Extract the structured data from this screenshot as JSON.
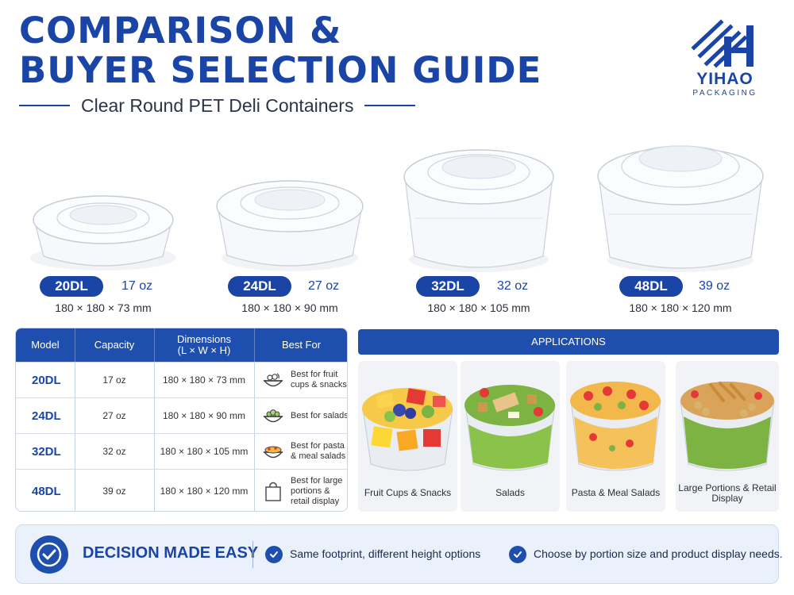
{
  "header": {
    "title_line1": "COMPARISON &",
    "title_line2": "BUYER SELECTION GUIDE",
    "subtitle": "Clear Round PET Deli Containers"
  },
  "brand": {
    "name": "YIHAO",
    "tagline": "PACKAGING"
  },
  "containers": [
    {
      "model": "20DL",
      "capacity": "17 oz",
      "dimensions": "180 × 180 × 73 mm"
    },
    {
      "model": "24DL",
      "capacity": "27 oz",
      "dimensions": "180 × 180 × 90 mm"
    },
    {
      "model": "32DL",
      "capacity": "32 oz",
      "dimensions": "180 × 180 × 105 mm"
    },
    {
      "model": "48DL",
      "capacity": "39 oz",
      "dimensions": "180 × 180 × 120 mm"
    }
  ],
  "table": {
    "headers": {
      "model": "Model",
      "capacity": "Capacity",
      "dimensions_line1": "Dimensions",
      "dimensions_line2": "(L × W × H)",
      "best_for": "Best For"
    },
    "rows": [
      {
        "model": "20DL",
        "capacity": "17 oz",
        "dimensions": "180 × 180 × 73 mm",
        "best_for": "Best for fruit cups & snacks",
        "icon": "fruit-bowl-icon"
      },
      {
        "model": "24DL",
        "capacity": "27 oz",
        "dimensions": "180 × 180 × 90 mm",
        "best_for": "Best for salads",
        "icon": "salad-bowl-icon"
      },
      {
        "model": "32DL",
        "capacity": "32 oz",
        "dimensions": "180 × 180 × 105 mm",
        "best_for": "Best for pasta & meal salads",
        "icon": "pasta-bowl-icon"
      },
      {
        "model": "48DL",
        "capacity": "39 oz",
        "dimensions": "180 × 180 × 120 mm",
        "best_for": "Best for large portions & retail display",
        "icon": "shopping-bag-icon"
      }
    ]
  },
  "applications": {
    "title": "APPLICATIONS",
    "items": [
      {
        "label": "Fruit Cups & Snacks"
      },
      {
        "label": "Salads"
      },
      {
        "label": "Pasta & Meal Salads"
      },
      {
        "label": "Large Portions & Retail Display"
      }
    ]
  },
  "banner": {
    "title": "DECISION MADE EASY",
    "points": [
      "Same footprint, different height options",
      "Choose by portion size and product display needs."
    ]
  },
  "colors": {
    "brand_blue": "#1a45a6",
    "header_blue": "#1f4fae",
    "banner_bg": "#eaf1fb"
  }
}
